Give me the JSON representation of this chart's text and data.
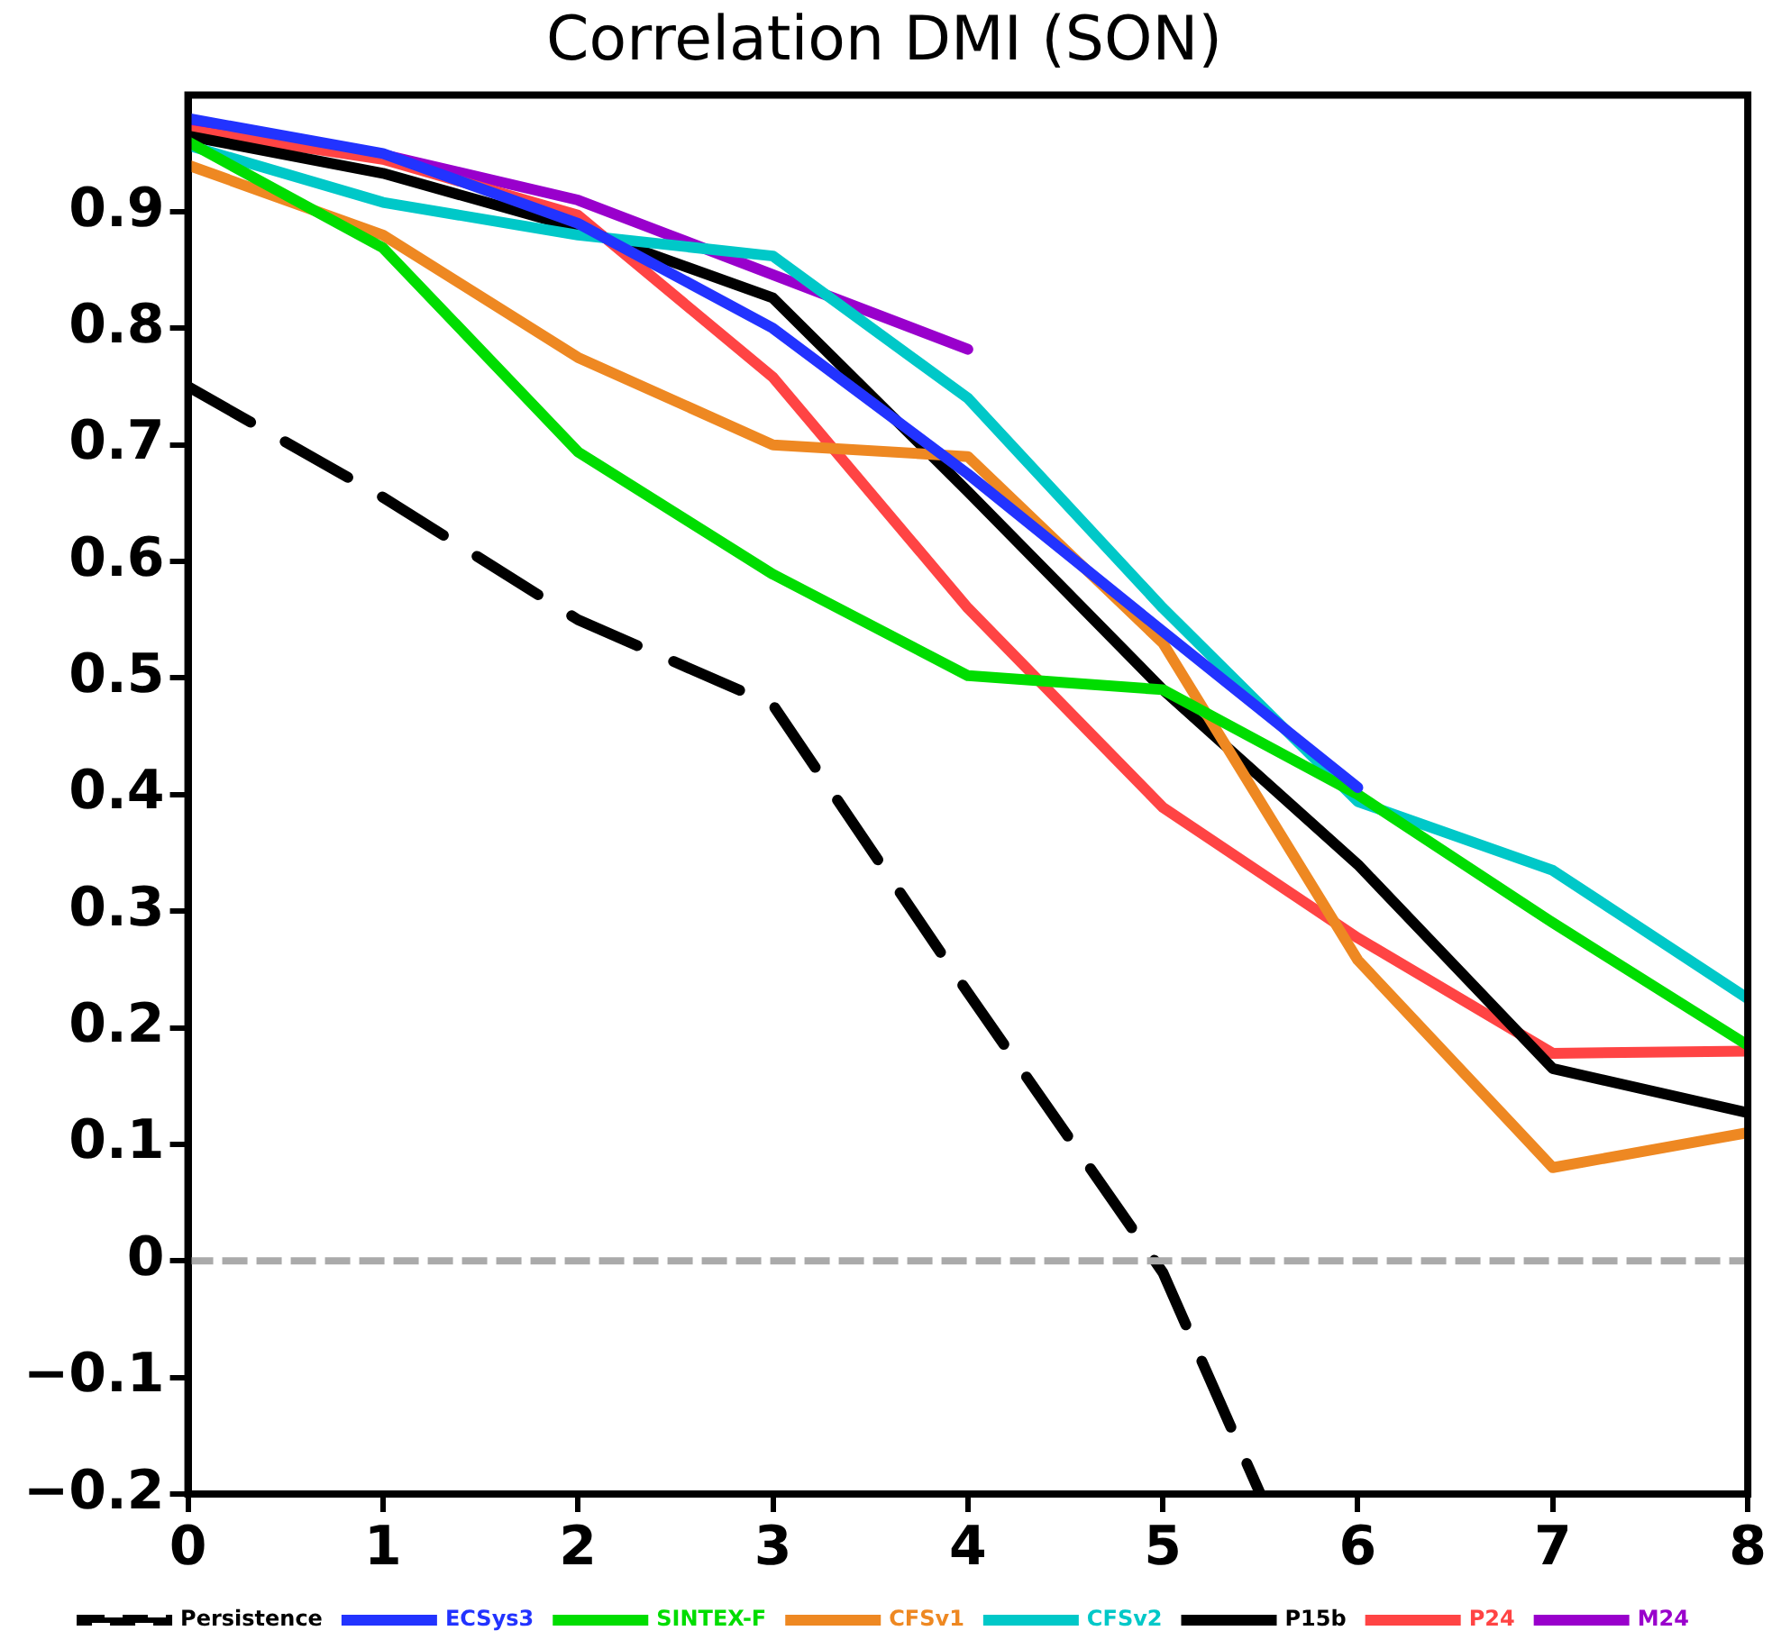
{
  "chart_data": {
    "type": "line",
    "title": "Correlation DMI (SON)",
    "x": [
      0,
      1,
      2,
      3,
      4,
      5,
      6,
      7,
      8
    ],
    "xlim": [
      0,
      8
    ],
    "xticks": [
      0,
      1,
      2,
      3,
      4,
      5,
      6,
      7,
      8
    ],
    "ylim": [
      -0.2,
      1.0
    ],
    "yticks": [
      -0.2,
      -0.1,
      0,
      0.1,
      0.2,
      0.3,
      0.4,
      0.5,
      0.6,
      0.7,
      0.8,
      0.9
    ],
    "grid": false,
    "legend": "bottom",
    "marker": "none",
    "ref_lines": [
      {
        "axis": "y",
        "value": 0,
        "color": "#aaaaaa",
        "line_style": "dashed"
      }
    ],
    "series": [
      {
        "name": "Persistence",
        "color": "#000000",
        "line_style": "dashed",
        "x": [
          0,
          1,
          2,
          3,
          4,
          5,
          5.5
        ],
        "values": [
          0.75,
          0.655,
          0.55,
          0.477,
          0.23,
          -0.01,
          -0.2
        ]
      },
      {
        "name": "ECSys3",
        "color": "#2233ff",
        "values": [
          0.98,
          0.95,
          0.89,
          0.8,
          0.675,
          0.54,
          0.406,
          null,
          null
        ]
      },
      {
        "name": "SINTEX-F",
        "color": "#00dd00",
        "values": [
          0.96,
          0.869,
          0.694,
          0.589,
          0.502,
          0.49,
          0.4,
          0.29,
          0.185
        ]
      },
      {
        "name": "CFSv1",
        "color": "#ee8822",
        "values": [
          0.94,
          0.88,
          0.775,
          0.7,
          0.69,
          0.53,
          0.258,
          0.08,
          0.11
        ]
      },
      {
        "name": "CFSv2",
        "color": "#00c8c8",
        "values": [
          0.957,
          0.908,
          0.88,
          0.862,
          0.74,
          0.56,
          0.394,
          0.335,
          0.225
        ]
      },
      {
        "name": "P15b",
        "color": "#000000",
        "values": [
          0.965,
          0.933,
          0.886,
          0.826,
          0.66,
          0.49,
          0.34,
          0.165,
          0.127
        ]
      },
      {
        "name": "P24",
        "color": "#ff4444",
        "values": [
          0.97,
          0.945,
          0.897,
          0.758,
          0.56,
          0.389,
          0.277,
          0.178,
          0.18
        ]
      },
      {
        "name": "M24",
        "color": "#9900cc",
        "values": [
          0.973,
          0.949,
          0.91,
          0.846,
          0.782,
          null,
          null,
          null,
          null
        ]
      }
    ]
  }
}
